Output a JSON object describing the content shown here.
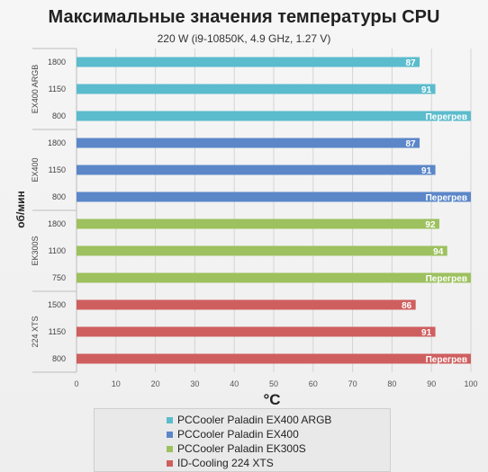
{
  "chart_data": {
    "type": "bar",
    "orientation": "horizontal",
    "title": "Максимальные значения температуры CPU",
    "subtitle": "220 W (i9-10850K, 4.9 GHz, 1.27 V)",
    "xlabel": "°C",
    "ylabel": "об/мин",
    "xlim": [
      0,
      100
    ],
    "x_ticks": [
      "0",
      "10",
      "20",
      "30",
      "40",
      "50",
      "60",
      "70",
      "80",
      "90",
      "100"
    ],
    "grid": true,
    "legend_position": "bottom",
    "groups": [
      {
        "name": "EX400 ARGB",
        "series": "PCCooler Paladin EX400 ARGB",
        "color": "#5bbccd",
        "bars": [
          {
            "rpm": "1800",
            "value": 87,
            "label": "87"
          },
          {
            "rpm": "1150",
            "value": 91,
            "label": "91"
          },
          {
            "rpm": "800",
            "value": 100,
            "label": "Перегрев"
          }
        ]
      },
      {
        "name": "EX400",
        "series": "PCCooler Paladin EX400",
        "color": "#5b87c9",
        "bars": [
          {
            "rpm": "1800",
            "value": 87,
            "label": "87"
          },
          {
            "rpm": "1150",
            "value": 91,
            "label": "91"
          },
          {
            "rpm": "800",
            "value": 100,
            "label": "Перегрев"
          }
        ]
      },
      {
        "name": "EK300S",
        "series": "PCCooler Paladin EK300S",
        "color": "#9dc15e",
        "bars": [
          {
            "rpm": "1800",
            "value": 92,
            "label": "92"
          },
          {
            "rpm": "1100",
            "value": 94,
            "label": "94"
          },
          {
            "rpm": "750",
            "value": 100,
            "label": "Перегрев"
          }
        ]
      },
      {
        "name": "224 XTS",
        "series": "ID-Cooling 224 XTS",
        "color": "#cf5f5f",
        "bars": [
          {
            "rpm": "1500",
            "value": 86,
            "label": "86"
          },
          {
            "rpm": "1150",
            "value": 91,
            "label": "91"
          },
          {
            "rpm": "800",
            "value": 100,
            "label": "Перегрев"
          }
        ]
      }
    ],
    "legend": [
      {
        "name": "PCCooler Paladin EX400 ARGB",
        "color": "#5bbccd"
      },
      {
        "name": "PCCooler Paladin EX400",
        "color": "#5b87c9"
      },
      {
        "name": "PCCooler Paladin EK300S",
        "color": "#9dc15e"
      },
      {
        "name": "ID-Cooling 224 XTS",
        "color": "#cf5f5f"
      }
    ]
  }
}
